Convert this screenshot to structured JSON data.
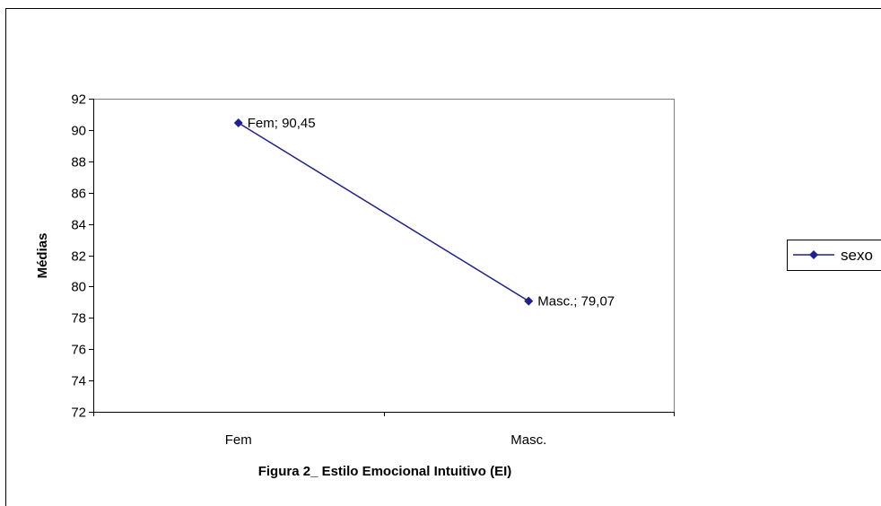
{
  "chart_data": {
    "type": "line",
    "title": "Figura 2_ Estilo Emocional Intuitivo (EI)",
    "xlabel": "",
    "ylabel": "Médias",
    "categories": [
      "Fem",
      "Masc."
    ],
    "series": [
      {
        "name": "sexo",
        "values": [
          90.45,
          79.07
        ],
        "data_labels": [
          "Fem; 90,45",
          "Masc.; 79,07"
        ],
        "color": "#1f1f8f",
        "marker": "diamond"
      }
    ],
    "ylim": [
      72,
      92
    ],
    "yticks": [
      72,
      74,
      76,
      78,
      80,
      82,
      84,
      86,
      88,
      90,
      92
    ],
    "grid": false,
    "legend_position": "right"
  }
}
